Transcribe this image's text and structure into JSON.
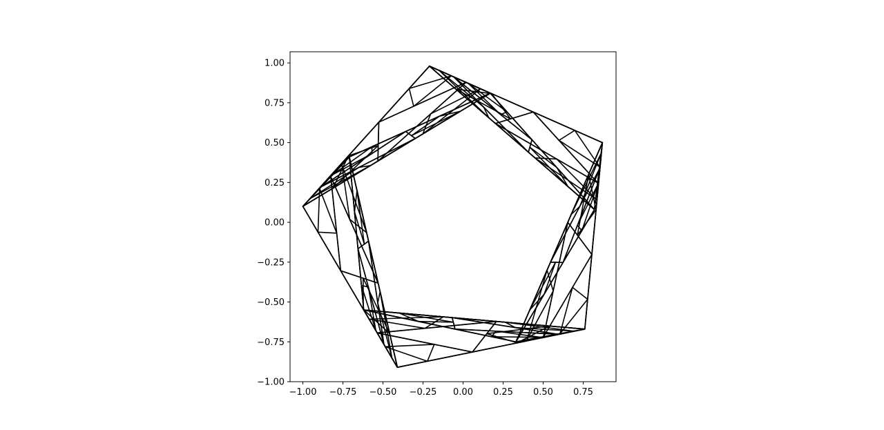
{
  "chart_data": {
    "type": "line",
    "title": "",
    "xlabel": "",
    "ylabel": "",
    "xlim": [
      -1.08,
      0.955
    ],
    "ylim": [
      -1.0,
      1.07
    ],
    "grid": false,
    "legend": "none",
    "line_color": "#000000",
    "x_ticks": [
      {
        "value": -1.0,
        "label": "−1.00"
      },
      {
        "value": -0.75,
        "label": "−0.75"
      },
      {
        "value": -0.5,
        "label": "−0.50"
      },
      {
        "value": -0.25,
        "label": "−0.25"
      },
      {
        "value": 0.0,
        "label": "0.00"
      },
      {
        "value": 0.25,
        "label": "0.25"
      },
      {
        "value": 0.5,
        "label": "0.50"
      },
      {
        "value": 0.75,
        "label": "0.75"
      }
    ],
    "y_ticks": [
      {
        "value": -1.0,
        "label": "−1.00"
      },
      {
        "value": -0.75,
        "label": "−0.75"
      },
      {
        "value": -0.5,
        "label": "−0.50"
      },
      {
        "value": -0.25,
        "label": "−0.25"
      },
      {
        "value": 0.0,
        "label": "0.00"
      },
      {
        "value": 0.25,
        "label": "0.25"
      },
      {
        "value": 0.5,
        "label": "0.50"
      },
      {
        "value": 0.75,
        "label": "0.75"
      },
      {
        "value": 1.0,
        "label": "1.00"
      }
    ],
    "series": [
      {
        "values": [
          [
            [
              -0.21,
              0.98
            ],
            [
              0.87,
              0.5
            ],
            [
              0.76,
              -0.67
            ],
            [
              -0.41,
              -0.91
            ],
            [
              -1.0,
              0.1
            ],
            [
              -0.21,
              0.98
            ]
          ],
          [
            [
              0.17,
              0.81
            ],
            [
              0.82,
              0.08
            ],
            [
              0.33,
              -0.75
            ],
            [
              -0.62,
              -0.55
            ],
            [
              -0.71,
              0.41
            ],
            [
              0.17,
              0.81
            ]
          ]
        ]
      }
    ]
  }
}
